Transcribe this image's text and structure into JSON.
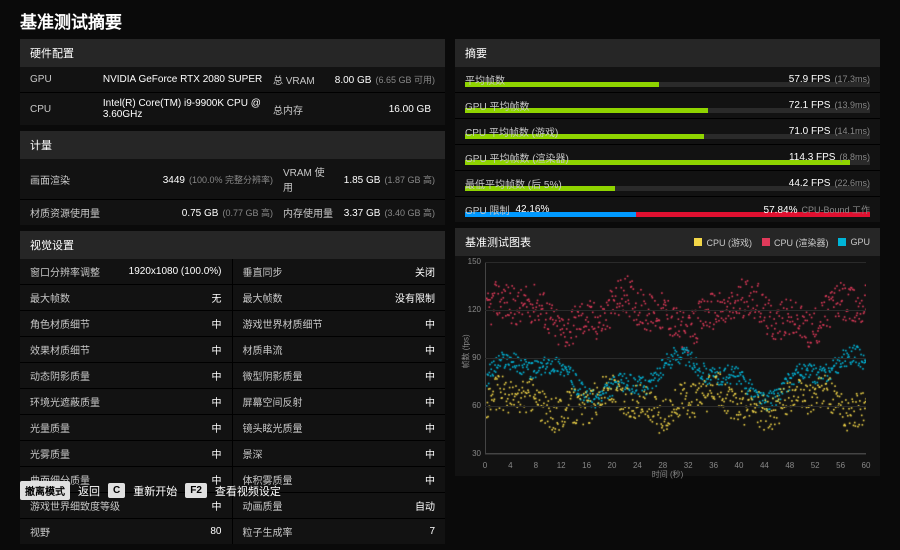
{
  "colors": {
    "bar_green": "#8fd400",
    "throttle_blue": "#0099ff",
    "throttle_red": "#e01030",
    "series_cpu_game": "#f2d648",
    "series_cpu_render": "#e03a5a",
    "series_gpu": "#00b5d8"
  },
  "title": "基准测试摘要",
  "hardware": {
    "header": "硬件配置",
    "rows": [
      {
        "k": "GPU",
        "v": "NVIDIA GeForce RTX 2080 SUPER",
        "k2": "总 VRAM",
        "v2": "8.00 GB",
        "v2sub": "(6.65 GB 可用)"
      },
      {
        "k": "CPU",
        "v": "Intel(R) Core(TM) i9-9900K CPU @ 3.60GHz",
        "k2": "总内存",
        "v2": "16.00 GB",
        "v2sub": ""
      }
    ]
  },
  "metrics": {
    "header": "计量",
    "rows": [
      {
        "k": "画面渲染",
        "v": "3449",
        "vsub": "(100.0% 完整分辨率)",
        "k2": "VRAM 使用",
        "v2": "1.85 GB",
        "v2sub": "(1.87 GB 高)"
      },
      {
        "k": "材质资源使用量",
        "v": "0.75 GB",
        "vsub": "(0.77 GB 高)",
        "k2": "内存使用量",
        "v2": "3.37 GB",
        "v2sub": "(3.40 GB 高)"
      }
    ]
  },
  "settings": {
    "header": "视觉设置",
    "rows": [
      {
        "l": "窗口分辨率调整",
        "lv": "1920x1080 (100.0%)",
        "r": "垂直同步",
        "rv": "关闭"
      },
      {
        "l": "最大帧数",
        "lv": "无",
        "r": "最大帧数",
        "rv": "没有限制"
      },
      {
        "l": "角色材质细节",
        "lv": "中",
        "r": "游戏世界材质细节",
        "rv": "中"
      },
      {
        "l": "效果材质细节",
        "lv": "中",
        "r": "材质串流",
        "rv": "中"
      },
      {
        "l": "动态阴影质量",
        "lv": "中",
        "r": "微型阴影质量",
        "rv": "中"
      },
      {
        "l": "环境光遮蔽质量",
        "lv": "中",
        "r": "屏幕空间反射",
        "rv": "中"
      },
      {
        "l": "光量质量",
        "lv": "中",
        "r": "镜头眩光质量",
        "rv": "中"
      },
      {
        "l": "光雾质量",
        "lv": "中",
        "r": "景深",
        "rv": "中"
      },
      {
        "l": "曲面细分质量",
        "lv": "中",
        "r": "体积雾质量",
        "rv": "中"
      },
      {
        "l": "游戏世界细致度等级",
        "lv": "中",
        "r": "动画质量",
        "rv": "自动"
      },
      {
        "l": "视野",
        "lv": "80",
        "r": "粒子生成率",
        "rv": "7"
      }
    ]
  },
  "summary": {
    "header": "摘要",
    "bars": [
      {
        "label": "平均帧数",
        "pct": 48,
        "val": "57.9 FPS",
        "sub": "(17.3ms)"
      },
      {
        "label": "GPU 平均帧数",
        "pct": 60,
        "val": "72.1 FPS",
        "sub": "(13.9ms)"
      },
      {
        "label": "CPU 平均帧数 (游戏)",
        "pct": 59,
        "val": "71.0 FPS",
        "sub": "(14.1ms)"
      },
      {
        "label": "GPU 平均帧数 (渲染器)",
        "pct": 95,
        "val": "114.3 FPS",
        "sub": "(8.8ms)"
      },
      {
        "label": "最低平均帧数 (后 5%)",
        "pct": 37,
        "val": "44.2 FPS",
        "sub": "(22.6ms)"
      }
    ],
    "throttle": {
      "label": "GPU 限制",
      "l_val": "42.16%",
      "r_val": "57.84%",
      "r_sub": "CPU-Bound 工作",
      "split": 42.16
    }
  },
  "chart": {
    "header": "基准测试图表",
    "legend": [
      {
        "label": "CPU (游戏)",
        "color_key": "series_cpu_game"
      },
      {
        "label": "CPU (渲染器)",
        "color_key": "series_cpu_render"
      },
      {
        "label": "GPU",
        "color_key": "series_gpu"
      }
    ],
    "y_axis": {
      "title": "帧数 (fps)",
      "min": 30,
      "max": 150,
      "ticks": [
        30,
        60,
        90,
        120,
        150
      ]
    },
    "x_axis": {
      "title": "时间 (秒)",
      "min": 0,
      "max": 60,
      "ticks": [
        0,
        4,
        8,
        12,
        16,
        20,
        24,
        28,
        32,
        36,
        40,
        44,
        48,
        52,
        56,
        60
      ]
    },
    "n_points": 600,
    "series": [
      {
        "color_key": "series_cpu_render",
        "base": 118,
        "amp": 8,
        "noise": 25,
        "freq": 0.35
      },
      {
        "color_key": "series_gpu",
        "base": 78,
        "amp": 10,
        "noise": 12,
        "freq": 0.25
      },
      {
        "color_key": "series_cpu_game",
        "base": 62,
        "amp": 6,
        "noise": 22,
        "freq": 0.4
      }
    ]
  },
  "footer": {
    "key1": "撤离模式",
    "act1": "返回",
    "key2": "C",
    "act2": "重新开始",
    "key3": "F2",
    "act3": "查看视频设定"
  }
}
